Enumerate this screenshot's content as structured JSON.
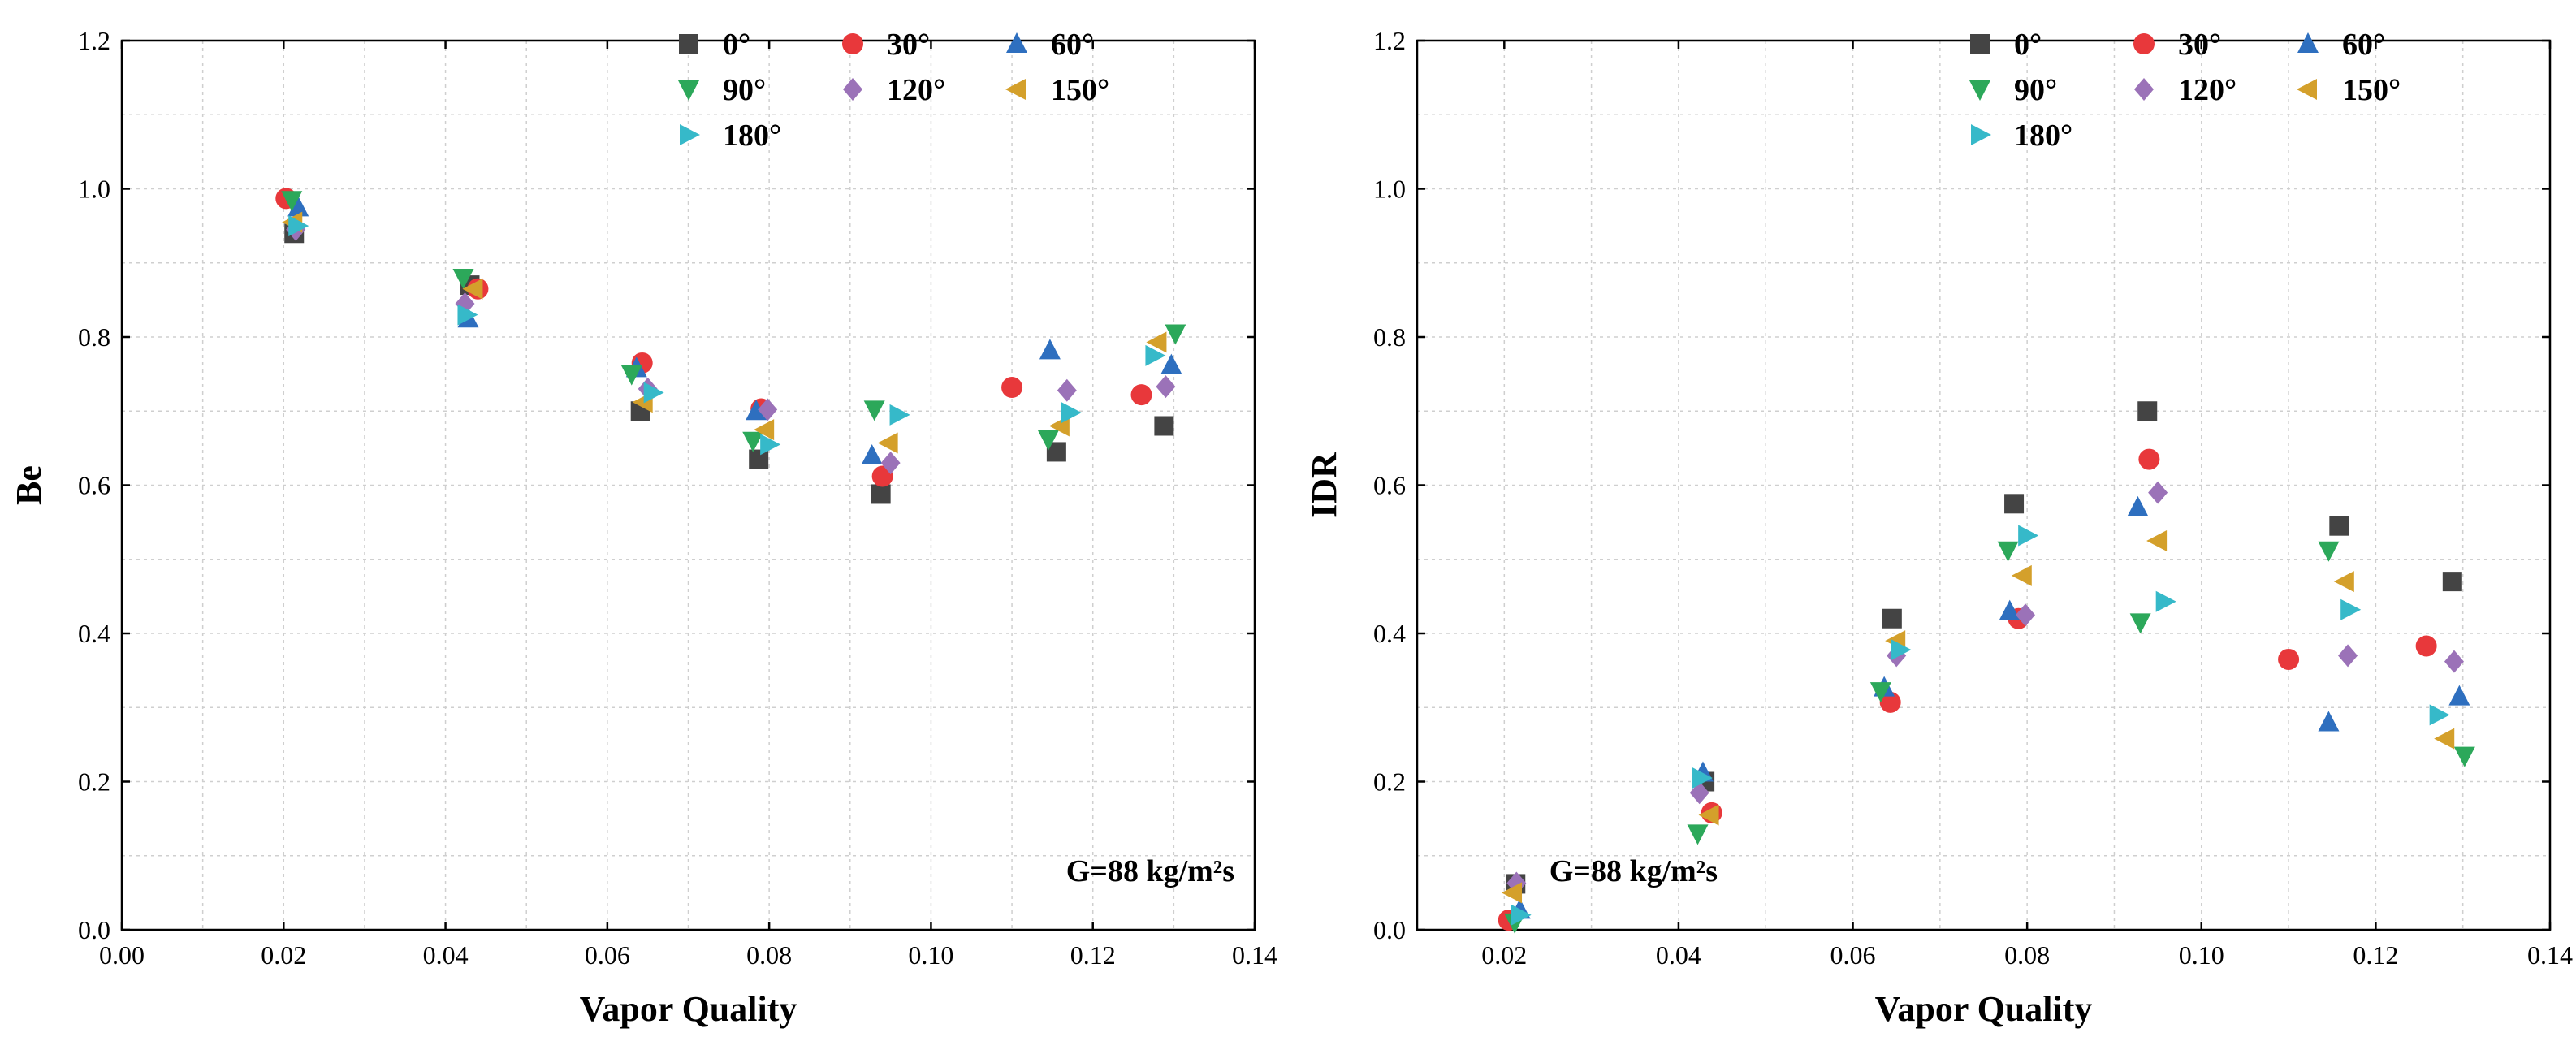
{
  "chart_data": [
    {
      "type": "scatter",
      "title": "",
      "xlabel": "Vapor Quality",
      "ylabel": "Be",
      "xlim": [
        0.0,
        0.14
      ],
      "ylim": [
        0.0,
        1.2
      ],
      "xticks": [
        "0.00",
        "0.02",
        "0.04",
        "0.06",
        "0.08",
        "0.10",
        "0.12",
        "0.14"
      ],
      "yticks": [
        "0.0",
        "0.2",
        "0.4",
        "0.6",
        "0.8",
        "1.0",
        "1.2"
      ],
      "grid": true,
      "legend_position": "top-right",
      "annotation": "G=88 kg/m²s",
      "series": [
        {
          "name": "0°",
          "marker": "square",
          "color": "#444444",
          "x": [
            0.0213,
            0.043,
            0.0641,
            0.0787,
            0.0938,
            0.1155,
            0.1288
          ],
          "y": [
            0.94,
            0.87,
            0.7,
            0.635,
            0.588,
            0.645,
            0.68
          ]
        },
        {
          "name": "30°",
          "marker": "circle",
          "color": "#e8383b",
          "x": [
            0.0203,
            0.044,
            0.0643,
            0.079,
            0.094,
            0.11,
            0.126
          ],
          "y": [
            0.987,
            0.865,
            0.765,
            0.703,
            0.612,
            0.732,
            0.722
          ]
        },
        {
          "name": "60°",
          "marker": "triangle-up",
          "color": "#2e6fbf",
          "x": [
            0.0218,
            0.0428,
            0.0636,
            0.0784,
            0.0927,
            0.1147,
            0.1297
          ],
          "y": [
            0.975,
            0.825,
            0.758,
            0.7,
            0.64,
            0.782,
            0.762
          ]
        },
        {
          "name": "90°",
          "marker": "triangle-down",
          "color": "#2ca85a",
          "x": [
            0.021,
            0.0422,
            0.063,
            0.078,
            0.093,
            0.1145,
            0.1302
          ],
          "y": [
            0.985,
            0.88,
            0.75,
            0.66,
            0.702,
            0.662,
            0.805
          ]
        },
        {
          "name": "120°",
          "marker": "diamond",
          "color": "#9b72b8",
          "x": [
            0.0215,
            0.0424,
            0.065,
            0.0798,
            0.095,
            0.1168,
            0.129
          ],
          "y": [
            0.945,
            0.845,
            0.73,
            0.702,
            0.63,
            0.728,
            0.733
          ]
        },
        {
          "name": "150°",
          "marker": "triangle-left",
          "color": "#d4a02b",
          "x": [
            0.0212,
            0.0435,
            0.0645,
            0.0795,
            0.0948,
            0.116,
            0.128
          ],
          "y": [
            0.955,
            0.865,
            0.712,
            0.675,
            0.657,
            0.68,
            0.793
          ]
        },
        {
          "name": "180°",
          "marker": "triangle-right",
          "color": "#36b9c9",
          "x": [
            0.0217,
            0.0426,
            0.0656,
            0.08,
            0.096,
            0.1172,
            0.1276
          ],
          "y": [
            0.95,
            0.83,
            0.725,
            0.655,
            0.695,
            0.698,
            0.775
          ]
        }
      ]
    },
    {
      "type": "scatter",
      "title": "",
      "xlabel": "Vapor Quality",
      "ylabel": "IDR",
      "xlim": [
        0.01,
        0.14
      ],
      "ylim": [
        0.0,
        1.2
      ],
      "xticks": [
        "0.02",
        "0.04",
        "0.06",
        "0.08",
        "0.10",
        "0.12",
        "0.14"
      ],
      "yticks": [
        "0.0",
        "0.2",
        "0.4",
        "0.6",
        "0.8",
        "1.0",
        "1.2"
      ],
      "grid": true,
      "legend_position": "top-right",
      "annotation": "G=88 kg/m²s",
      "series": [
        {
          "name": "0°",
          "marker": "square",
          "color": "#444444",
          "x": [
            0.0213,
            0.043,
            0.0645,
            0.0785,
            0.0938,
            0.1158,
            0.1288
          ],
          "y": [
            0.062,
            0.2,
            0.42,
            0.575,
            0.7,
            0.545,
            0.47
          ]
        },
        {
          "name": "30°",
          "marker": "circle",
          "color": "#e8383b",
          "x": [
            0.0205,
            0.0438,
            0.0643,
            0.079,
            0.094,
            0.11,
            0.1258
          ],
          "y": [
            0.013,
            0.158,
            0.307,
            0.42,
            0.635,
            0.365,
            0.383
          ]
        },
        {
          "name": "60°",
          "marker": "triangle-up",
          "color": "#2e6fbf",
          "x": [
            0.0218,
            0.0428,
            0.0636,
            0.078,
            0.0927,
            0.1146,
            0.1296
          ],
          "y": [
            0.027,
            0.212,
            0.327,
            0.43,
            0.57,
            0.28,
            0.315
          ]
        },
        {
          "name": "90°",
          "marker": "triangle-down",
          "color": "#2ca85a",
          "x": [
            0.0212,
            0.0422,
            0.0632,
            0.0778,
            0.093,
            0.1146,
            0.1302
          ],
          "y": [
            0.01,
            0.13,
            0.322,
            0.512,
            0.415,
            0.512,
            0.235
          ]
        },
        {
          "name": "120°",
          "marker": "diamond",
          "color": "#9b72b8",
          "x": [
            0.0214,
            0.0424,
            0.065,
            0.0798,
            0.095,
            0.1168,
            0.129
          ],
          "y": [
            0.063,
            0.185,
            0.37,
            0.425,
            0.59,
            0.37,
            0.362
          ]
        },
        {
          "name": "150°",
          "marker": "triangle-left",
          "color": "#d4a02b",
          "x": [
            0.021,
            0.0436,
            0.065,
            0.0795,
            0.095,
            0.1165,
            0.128
          ],
          "y": [
            0.05,
            0.155,
            0.39,
            0.478,
            0.525,
            0.47,
            0.258
          ]
        },
        {
          "name": "180°",
          "marker": "triangle-right",
          "color": "#36b9c9",
          "x": [
            0.0218,
            0.0426,
            0.0654,
            0.08,
            0.0958,
            0.117,
            0.1272
          ],
          "y": [
            0.02,
            0.205,
            0.378,
            0.532,
            0.443,
            0.432,
            0.29
          ]
        }
      ]
    }
  ]
}
